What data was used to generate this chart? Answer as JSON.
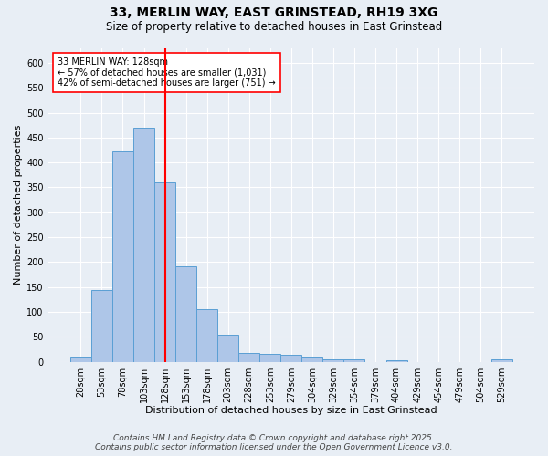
{
  "title1": "33, MERLIN WAY, EAST GRINSTEAD, RH19 3XG",
  "title2": "Size of property relative to detached houses in East Grinstead",
  "xlabel": "Distribution of detached houses by size in East Grinstead",
  "ylabel": "Number of detached properties",
  "bar_labels": [
    "28sqm",
    "53sqm",
    "78sqm",
    "103sqm",
    "128sqm",
    "153sqm",
    "178sqm",
    "203sqm",
    "228sqm",
    "253sqm",
    "279sqm",
    "304sqm",
    "329sqm",
    "354sqm",
    "379sqm",
    "404sqm",
    "429sqm",
    "454sqm",
    "479sqm",
    "504sqm",
    "529sqm"
  ],
  "bar_values": [
    10,
    143,
    423,
    470,
    360,
    192,
    106,
    54,
    18,
    15,
    13,
    10,
    4,
    5,
    0,
    3,
    0,
    0,
    0,
    0,
    4
  ],
  "bar_color": "#aec6e8",
  "bar_edge_color": "#5a9fd4",
  "vline_x_index": 4,
  "vline_color": "red",
  "annotation_title": "33 MERLIN WAY: 128sqm",
  "annotation_line1": "← 57% of detached houses are smaller (1,031)",
  "annotation_line2": "42% of semi-detached houses are larger (751) →",
  "annotation_box_color": "white",
  "annotation_edge_color": "red",
  "ylim": [
    0,
    630
  ],
  "yticks": [
    0,
    50,
    100,
    150,
    200,
    250,
    300,
    350,
    400,
    450,
    500,
    550,
    600
  ],
  "bg_color": "#e8eef5",
  "plot_bg_color": "#e8eef5",
  "footer1": "Contains HM Land Registry data © Crown copyright and database right 2025.",
  "footer2": "Contains public sector information licensed under the Open Government Licence v3.0.",
  "title1_fontsize": 10,
  "title2_fontsize": 8.5,
  "xlabel_fontsize": 8,
  "ylabel_fontsize": 8,
  "tick_fontsize": 7,
  "annotation_fontsize": 7,
  "footer_fontsize": 6.5
}
